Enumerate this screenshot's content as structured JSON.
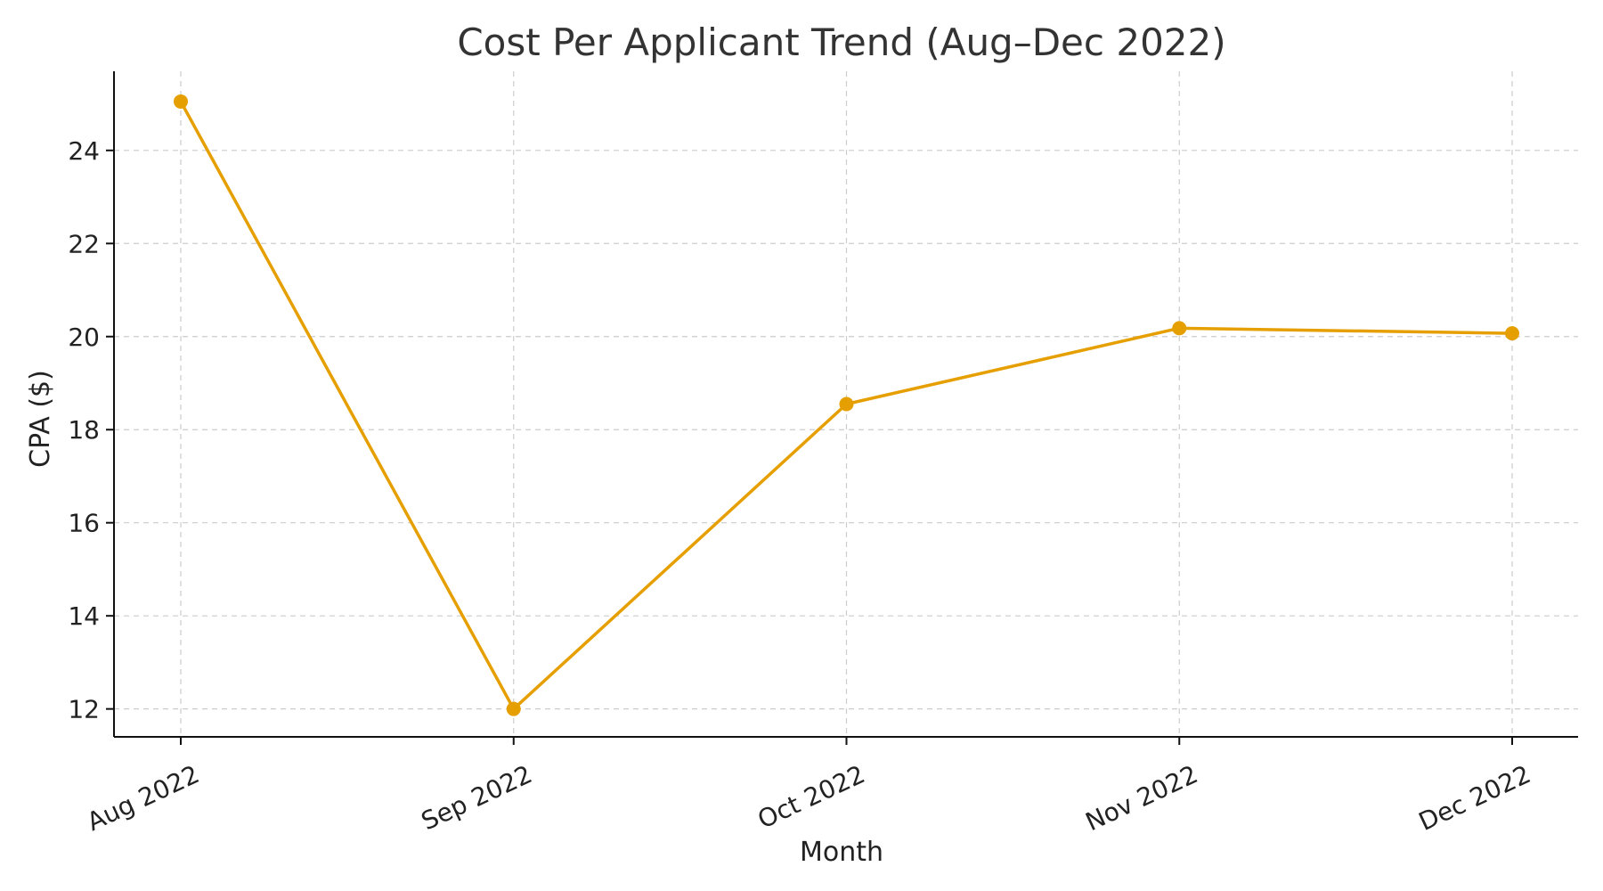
{
  "chart_data": {
    "type": "line",
    "title": "Cost Per Applicant Trend (Aug–Dec 2022)",
    "xlabel": "Month",
    "ylabel": "CPA ($)",
    "categories": [
      "Aug 2022",
      "Sep 2022",
      "Oct 2022",
      "Nov 2022",
      "Dec 2022"
    ],
    "series": [
      {
        "values": [
          25.05,
          12.0,
          18.55,
          20.18,
          20.07
        ],
        "color": "#E69F00"
      }
    ],
    "ylim": [
      11.4,
      25.7
    ],
    "yticks": [
      12,
      14,
      16,
      18,
      20,
      22,
      24
    ],
    "grid": true,
    "legend": "none"
  }
}
